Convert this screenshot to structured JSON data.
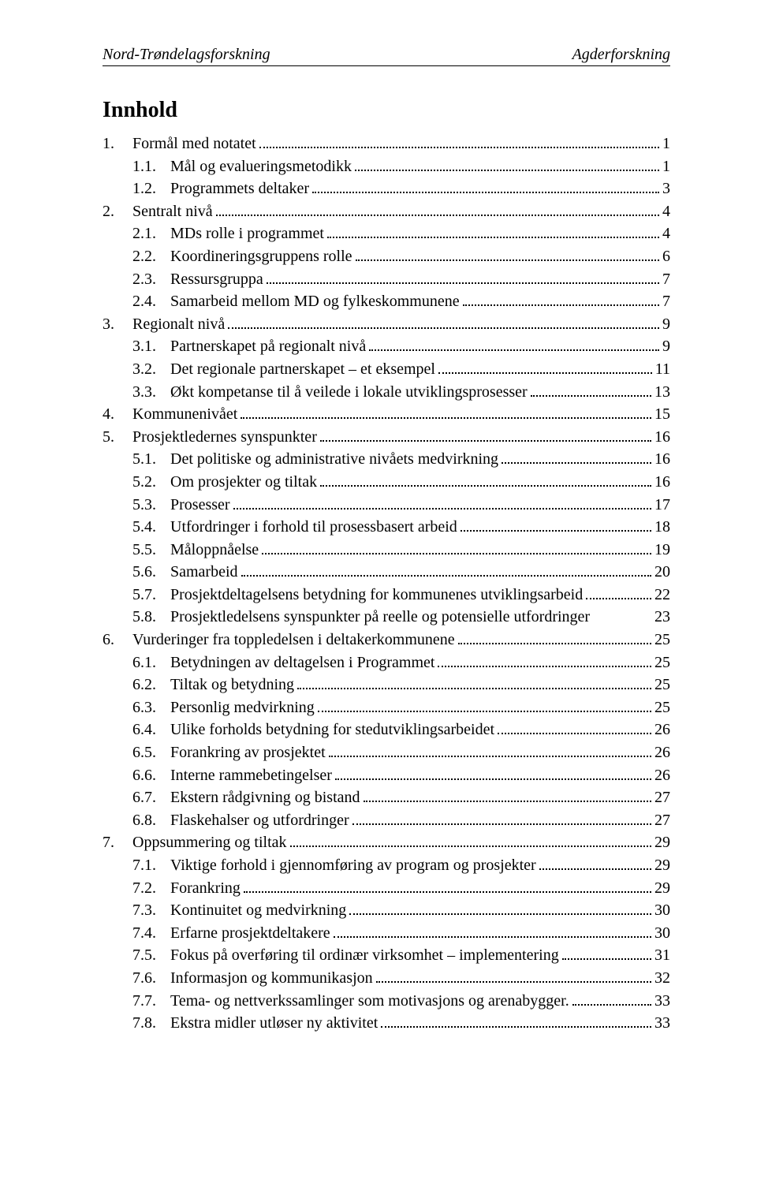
{
  "header": {
    "left": "Nord-Trøndelagsforskning",
    "right": "Agderforskning"
  },
  "toc_title": "Innhold",
  "toc": [
    {
      "lvl": 1,
      "num": "1.",
      "label": "Formål med notatet",
      "page": "1"
    },
    {
      "lvl": 2,
      "num": "1.1.",
      "label": "Mål og evalueringsmetodikk",
      "page": "1"
    },
    {
      "lvl": 2,
      "num": "1.2.",
      "label": "Programmets deltaker",
      "page": "3"
    },
    {
      "lvl": 1,
      "num": "2.",
      "label": "Sentralt nivå",
      "page": "4"
    },
    {
      "lvl": 2,
      "num": "2.1.",
      "label": "MDs rolle i programmet",
      "page": "4"
    },
    {
      "lvl": 2,
      "num": "2.2.",
      "label": "Koordineringsgruppens rolle",
      "page": "6"
    },
    {
      "lvl": 2,
      "num": "2.3.",
      "label": "Ressursgruppa",
      "page": "7"
    },
    {
      "lvl": 2,
      "num": "2.4.",
      "label": "Samarbeid mellom MD og fylkeskommunene",
      "page": "7"
    },
    {
      "lvl": 1,
      "num": "3.",
      "label": "Regionalt nivå",
      "page": "9"
    },
    {
      "lvl": 2,
      "num": "3.1.",
      "label": "Partnerskapet på regionalt nivå",
      "page": "9"
    },
    {
      "lvl": 2,
      "num": "3.2.",
      "label": "Det regionale partnerskapet – et eksempel",
      "page": "11"
    },
    {
      "lvl": 2,
      "num": "3.3.",
      "label": "Økt kompetanse til å veilede i lokale utviklingsprosesser",
      "page": "13"
    },
    {
      "lvl": 1,
      "num": "4.",
      "label": "Kommunenivået",
      "page": "15"
    },
    {
      "lvl": 1,
      "num": "5.",
      "label": "Prosjektledernes synspunkter",
      "page": "16"
    },
    {
      "lvl": 2,
      "num": "5.1.",
      "label": "Det politiske og administrative nivåets medvirkning",
      "page": "16"
    },
    {
      "lvl": 2,
      "num": "5.2.",
      "label": "Om prosjekter og tiltak",
      "page": "16"
    },
    {
      "lvl": 2,
      "num": "5.3.",
      "label": "Prosesser",
      "page": "17"
    },
    {
      "lvl": 2,
      "num": "5.4.",
      "label": "Utfordringer i forhold til prosessbasert arbeid",
      "page": "18"
    },
    {
      "lvl": 2,
      "num": "5.5.",
      "label": "Måloppnåelse",
      "page": "19"
    },
    {
      "lvl": 2,
      "num": "5.6.",
      "label": "Samarbeid",
      "page": "20"
    },
    {
      "lvl": 2,
      "num": "5.7.",
      "label": "Prosjektdeltagelsens betydning for kommunenes utviklingsarbeid",
      "page": "22"
    },
    {
      "lvl": 2,
      "num": "5.8.",
      "label": "Prosjektledelsens synspunkter på reelle og potensielle utfordringer",
      "page": "23",
      "no_leader": true
    },
    {
      "lvl": 1,
      "num": "6.",
      "label": "Vurderinger fra toppledelsen i deltakerkommunene",
      "page": "25"
    },
    {
      "lvl": 2,
      "num": "6.1.",
      "label": "Betydningen av deltagelsen i Programmet",
      "page": "25"
    },
    {
      "lvl": 2,
      "num": "6.2.",
      "label": "Tiltak og betydning",
      "page": "25"
    },
    {
      "lvl": 2,
      "num": "6.3.",
      "label": "Personlig medvirkning",
      "page": "25"
    },
    {
      "lvl": 2,
      "num": "6.4.",
      "label": "Ulike forholds betydning for stedutviklingsarbeidet",
      "page": "26"
    },
    {
      "lvl": 2,
      "num": "6.5.",
      "label": "Forankring av prosjektet",
      "page": "26"
    },
    {
      "lvl": 2,
      "num": "6.6.",
      "label": "Interne rammebetingelser",
      "page": "26"
    },
    {
      "lvl": 2,
      "num": "6.7.",
      "label": "Ekstern rådgivning og bistand",
      "page": "27"
    },
    {
      "lvl": 2,
      "num": "6.8.",
      "label": "Flaskehalser og utfordringer",
      "page": "27"
    },
    {
      "lvl": 1,
      "num": "7.",
      "label": "Oppsummering og tiltak",
      "page": "29"
    },
    {
      "lvl": 2,
      "num": "7.1.",
      "label": "Viktige forhold i gjennomføring av program og prosjekter",
      "page": "29"
    },
    {
      "lvl": 2,
      "num": "7.2.",
      "label": "Forankring",
      "page": "29"
    },
    {
      "lvl": 2,
      "num": "7.3.",
      "label": "Kontinuitet og medvirkning",
      "page": "30"
    },
    {
      "lvl": 2,
      "num": "7.4.",
      "label": "Erfarne prosjektdeltakere",
      "page": "30"
    },
    {
      "lvl": 2,
      "num": "7.5.",
      "label": "Fokus på overføring til ordinær virksomhet – implementering",
      "page": "31"
    },
    {
      "lvl": 2,
      "num": "7.6.",
      "label": "Informasjon og kommunikasjon",
      "page": "32"
    },
    {
      "lvl": 2,
      "num": "7.7.",
      "label": "Tema- og nettverkssamlinger som motivasjons og arenabygger.",
      "page": "33"
    },
    {
      "lvl": 2,
      "num": "7.8.",
      "label": "Ekstra midler utløser ny aktivitet",
      "page": "33"
    }
  ]
}
